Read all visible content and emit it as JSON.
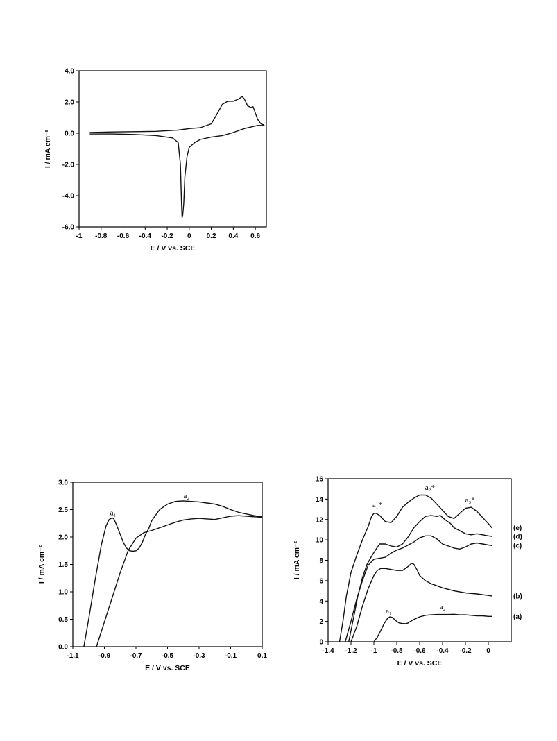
{
  "chart_data": [
    {
      "type": "line",
      "xlabel": "E / V vs. SCE",
      "ylabel": "I / mA cm⁻²",
      "xlim": [
        -1.0,
        0.7
      ],
      "ylim": [
        -6.0,
        4.0
      ],
      "x_ticks": [
        "-1",
        "-0.8",
        "-0.6",
        "-0.4",
        "-0.2",
        "0",
        "0.2",
        "0.4",
        "0.6"
      ],
      "y_ticks": [
        "4.0",
        "2.0",
        "0.0",
        "-2.0",
        "-4.0",
        "-6.0"
      ],
      "grid": false,
      "series": [
        {
          "x": [
            -0.9,
            -0.7,
            -0.5,
            -0.3,
            -0.1,
            0.0,
            0.1,
            0.2,
            0.25,
            0.3,
            0.35,
            0.4,
            0.45,
            0.48,
            0.5,
            0.53,
            0.56,
            0.58,
            0.6,
            0.62,
            0.65,
            0.67,
            0.68,
            0.62,
            0.5,
            0.4,
            0.3,
            0.2,
            0.1,
            0.05,
            0.0,
            -0.02,
            -0.04,
            -0.05,
            -0.06,
            -0.065,
            -0.07,
            -0.08,
            -0.1,
            -0.15,
            -0.3,
            -0.5,
            -0.7,
            -0.9
          ],
          "y": [
            0.05,
            0.08,
            0.1,
            0.12,
            0.2,
            0.3,
            0.35,
            0.6,
            1.2,
            1.85,
            2.05,
            2.05,
            2.2,
            2.35,
            2.2,
            1.75,
            1.65,
            1.7,
            1.3,
            0.9,
            0.6,
            0.55,
            0.5,
            0.5,
            0.3,
            0.05,
            -0.15,
            -0.25,
            -0.4,
            -0.6,
            -0.9,
            -1.5,
            -2.8,
            -4.5,
            -5.3,
            -5.4,
            -4.5,
            -2.0,
            -0.6,
            -0.3,
            -0.15,
            -0.08,
            -0.05,
            -0.05
          ]
        }
      ]
    },
    {
      "type": "line",
      "xlabel": "E / V vs. SCE",
      "ylabel": "I / mA cm⁻²",
      "xlim": [
        -1.1,
        0.1
      ],
      "ylim": [
        0.0,
        3.0
      ],
      "x_ticks": [
        "-1.1",
        "-0.9",
        "-0.7",
        "-0.5",
        "-0.3",
        "-0.1",
        "0.1"
      ],
      "y_ticks": [
        "3.0",
        "2.5",
        "2.0",
        "1.5",
        "1.0",
        "0.5",
        "0.0"
      ],
      "grid": false,
      "annotations": [
        {
          "text": "a₁",
          "x": -0.845,
          "y": 2.4
        },
        {
          "text": "a₂",
          "x": -0.38,
          "y": 2.71
        }
      ],
      "series": [
        {
          "x": [
            -1.03,
            -1.0,
            -0.96,
            -0.92,
            -0.89,
            -0.87,
            -0.85,
            -0.84,
            -0.82,
            -0.8,
            -0.78,
            -0.76,
            -0.74,
            -0.72,
            -0.7,
            -0.68,
            -0.66,
            -0.64,
            -0.62,
            -0.6,
            -0.55,
            -0.5,
            -0.45,
            -0.4,
            -0.35,
            -0.3,
            -0.25,
            -0.2,
            -0.15,
            -0.1,
            -0.05,
            0.0,
            0.05,
            0.1
          ],
          "y": [
            0.0,
            0.5,
            1.2,
            1.85,
            2.2,
            2.32,
            2.35,
            2.33,
            2.2,
            2.05,
            1.9,
            1.8,
            1.75,
            1.74,
            1.75,
            1.8,
            1.9,
            2.05,
            2.15,
            2.3,
            2.5,
            2.6,
            2.65,
            2.66,
            2.65,
            2.64,
            2.62,
            2.6,
            2.56,
            2.5,
            2.45,
            2.42,
            2.39,
            2.37
          ]
        },
        {
          "x": [
            -0.95,
            -0.9,
            -0.85,
            -0.8,
            -0.75,
            -0.7,
            -0.65,
            -0.6,
            -0.55,
            -0.5,
            -0.45,
            -0.4,
            -0.35,
            -0.3,
            -0.25,
            -0.2,
            -0.15,
            -0.1,
            -0.05,
            0.0,
            0.05,
            0.1
          ],
          "y": [
            0.0,
            0.45,
            0.9,
            1.35,
            1.75,
            1.98,
            2.08,
            2.12,
            2.17,
            2.22,
            2.27,
            2.31,
            2.33,
            2.34,
            2.33,
            2.32,
            2.35,
            2.38,
            2.39,
            2.38,
            2.37,
            2.36
          ]
        }
      ]
    },
    {
      "type": "line",
      "xlabel": "E / V vs. SCE",
      "ylabel": "I / mA cm⁻²",
      "xlim": [
        -1.4,
        0.2
      ],
      "ylim": [
        0,
        16
      ],
      "x_ticks": [
        "-1.4",
        "-1.2",
        "-1",
        "-0.8",
        "-0.6",
        "-0.4",
        "-0.2",
        "0"
      ],
      "y_ticks": [
        "16",
        "14",
        "12",
        "10",
        "8",
        "6",
        "4",
        "2",
        "0"
      ],
      "grid": false,
      "annotations": [
        {
          "text": "a₁*",
          "x": -0.97,
          "y": 13.2
        },
        {
          "text": "a₂*",
          "x": -0.51,
          "y": 14.9
        },
        {
          "text": "a₃*",
          "x": -0.16,
          "y": 13.7
        },
        {
          "text": "a₁",
          "x": -0.87,
          "y": 2.8
        },
        {
          "text": "a₂",
          "x": -0.4,
          "y": 3.2
        }
      ],
      "series": [
        {
          "name": "(a)",
          "x": [
            -1.0,
            -0.97,
            -0.94,
            -0.91,
            -0.88,
            -0.86,
            -0.84,
            -0.82,
            -0.8,
            -0.78,
            -0.75,
            -0.72,
            -0.7,
            -0.68,
            -0.65,
            -0.6,
            -0.55,
            -0.5,
            -0.45,
            -0.4,
            -0.35,
            -0.3,
            -0.25,
            -0.2,
            -0.15,
            -0.1,
            -0.05,
            0.0,
            0.03
          ],
          "y": [
            0.0,
            0.45,
            1.1,
            1.8,
            2.3,
            2.45,
            2.4,
            2.2,
            2.0,
            1.85,
            1.8,
            1.78,
            1.85,
            2.0,
            2.2,
            2.45,
            2.6,
            2.65,
            2.68,
            2.68,
            2.68,
            2.7,
            2.65,
            2.65,
            2.6,
            2.55,
            2.55,
            2.5,
            2.5
          ]
        },
        {
          "name": "(b)",
          "x": [
            -1.2,
            -1.15,
            -1.1,
            -1.05,
            -1.0,
            -0.97,
            -0.94,
            -0.9,
            -0.85,
            -0.8,
            -0.75,
            -0.7,
            -0.67,
            -0.65,
            -0.62,
            -0.6,
            -0.55,
            -0.5,
            -0.45,
            -0.4,
            -0.3,
            -0.2,
            -0.1,
            0.0,
            0.03
          ],
          "y": [
            0.0,
            1.5,
            3.5,
            5.2,
            6.5,
            7.0,
            7.2,
            7.2,
            7.1,
            7.0,
            7.0,
            7.4,
            7.7,
            7.6,
            7.0,
            6.5,
            6.0,
            5.7,
            5.5,
            5.3,
            5.0,
            4.8,
            4.7,
            4.55,
            4.5
          ]
        },
        {
          "name": "(c)",
          "x": [
            -1.25,
            -1.2,
            -1.15,
            -1.1,
            -1.05,
            -1.0,
            -0.95,
            -0.9,
            -0.85,
            -0.8,
            -0.75,
            -0.7,
            -0.65,
            -0.6,
            -0.55,
            -0.5,
            -0.45,
            -0.4,
            -0.35,
            -0.3,
            -0.25,
            -0.2,
            -0.15,
            -0.1,
            -0.05,
            0.0,
            0.03
          ],
          "y": [
            0.0,
            2.0,
            4.2,
            6.0,
            7.5,
            8.1,
            8.2,
            8.3,
            8.7,
            9.0,
            9.2,
            9.5,
            9.8,
            10.2,
            10.4,
            10.4,
            10.1,
            9.6,
            9.4,
            9.2,
            9.1,
            9.3,
            9.6,
            9.7,
            9.6,
            9.5,
            9.45
          ]
        },
        {
          "name": "(d)",
          "x": [
            -1.22,
            -1.18,
            -1.14,
            -1.1,
            -1.06,
            -1.02,
            -0.98,
            -0.95,
            -0.9,
            -0.85,
            -0.8,
            -0.75,
            -0.7,
            -0.65,
            -0.6,
            -0.55,
            -0.5,
            -0.45,
            -0.42,
            -0.38,
            -0.33,
            -0.3,
            -0.25,
            -0.2,
            -0.15,
            -0.1,
            -0.05,
            0.0,
            0.03
          ],
          "y": [
            0.0,
            2.2,
            4.5,
            6.3,
            7.6,
            8.4,
            9.1,
            9.6,
            9.6,
            9.4,
            9.3,
            9.6,
            10.3,
            11.2,
            11.8,
            12.3,
            12.4,
            12.3,
            12.4,
            12.0,
            11.6,
            11.2,
            10.9,
            10.6,
            10.5,
            10.6,
            10.5,
            10.4,
            10.35
          ]
        },
        {
          "name": "(e)",
          "x": [
            -1.3,
            -1.27,
            -1.24,
            -1.2,
            -1.15,
            -1.1,
            -1.05,
            -1.02,
            -1.0,
            -0.98,
            -0.95,
            -0.9,
            -0.85,
            -0.8,
            -0.75,
            -0.7,
            -0.65,
            -0.6,
            -0.55,
            -0.5,
            -0.45,
            -0.4,
            -0.35,
            -0.3,
            -0.25,
            -0.2,
            -0.15,
            -0.1,
            -0.05,
            0.0,
            0.03
          ],
          "y": [
            0.0,
            2.0,
            4.5,
            6.8,
            8.5,
            10.0,
            11.3,
            12.3,
            12.6,
            12.6,
            12.4,
            11.8,
            11.7,
            12.3,
            13.2,
            13.7,
            14.1,
            14.4,
            14.4,
            14.1,
            13.5,
            12.9,
            12.3,
            12.1,
            12.6,
            13.1,
            13.2,
            12.8,
            12.2,
            11.6,
            11.2
          ]
        }
      ]
    }
  ]
}
